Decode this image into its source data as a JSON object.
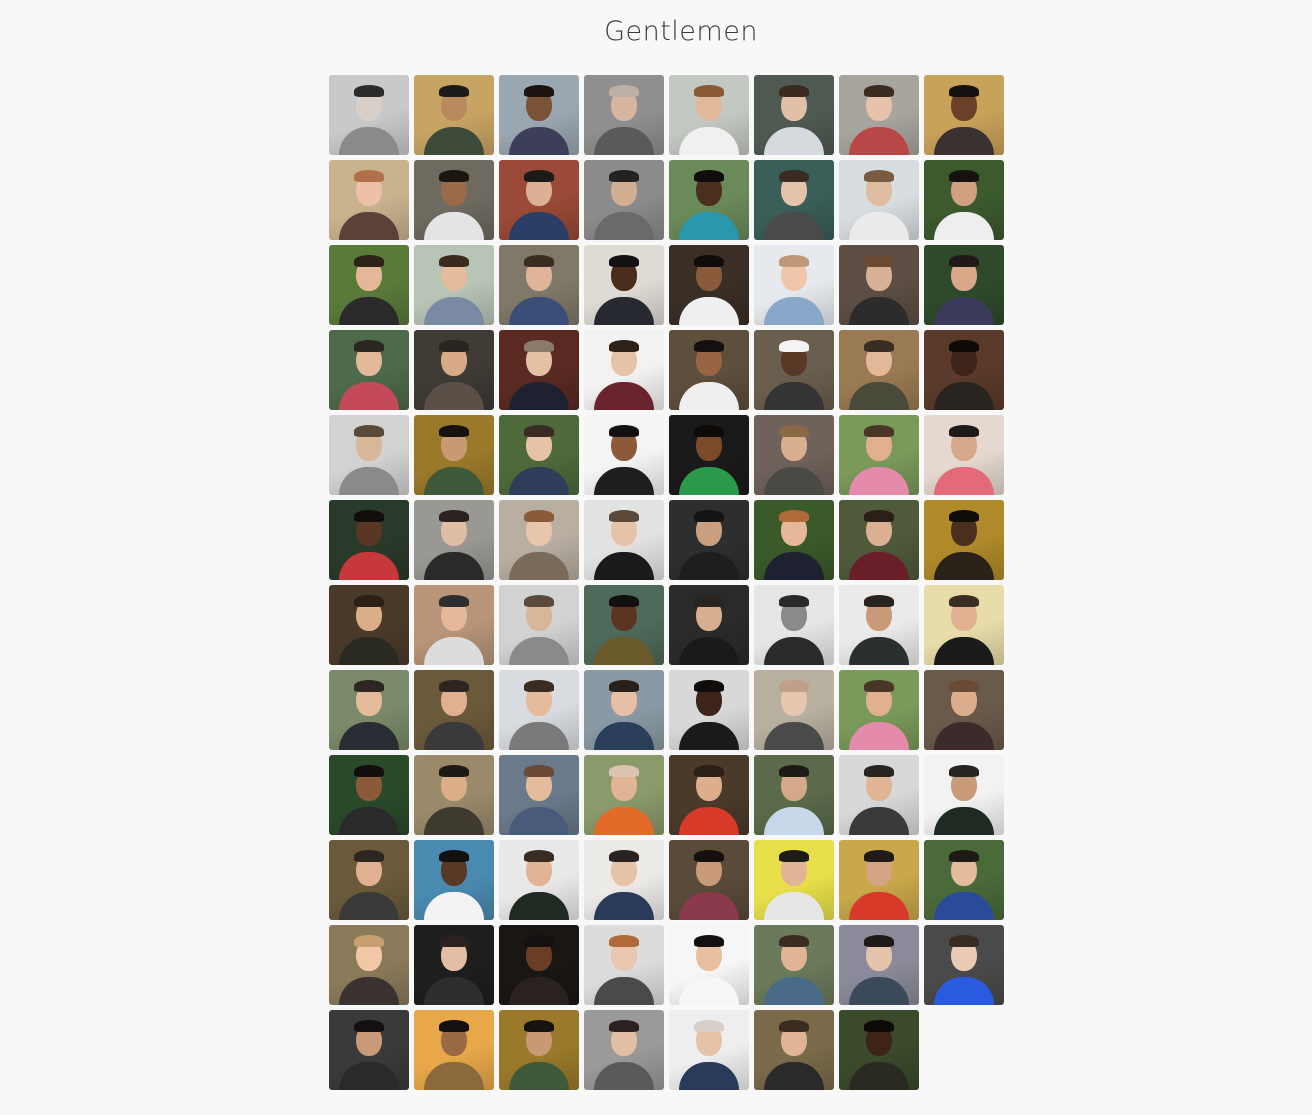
{
  "page": {
    "title": "Gentlemen"
  },
  "avatars": [
    {
      "name": "avatar-01",
      "bg": "#c9c9c9",
      "skin": "#d8d0c8",
      "hair": "#2b2b2b",
      "shirt": "#8a8a8a"
    },
    {
      "name": "avatar-02",
      "bg": "#c8a464",
      "skin": "#b98a5e",
      "hair": "#1d1b19",
      "shirt": "#3e4a3a"
    },
    {
      "name": "avatar-03",
      "bg": "#9aa7b0",
      "skin": "#7a5238",
      "hair": "#1b1410",
      "shirt": "#3d3e58"
    },
    {
      "name": "avatar-04",
      "bg": "#8f8f8f",
      "skin": "#d8b4a0",
      "hair": "#bcb0a4",
      "shirt": "#5a5a5a"
    },
    {
      "name": "avatar-05",
      "bg": "#c4c8c2",
      "skin": "#e0b89a",
      "hair": "#8a5a34",
      "shirt": "#f0f0f0"
    },
    {
      "name": "avatar-06",
      "bg": "#4e5a52",
      "skin": "#e1bea6",
      "hair": "#3a2a20",
      "shirt": "#d6d9de"
    },
    {
      "name": "avatar-07",
      "bg": "#a8a49e",
      "skin": "#e6c2ac",
      "hair": "#3b2c22",
      "shirt": "#b84848"
    },
    {
      "name": "avatar-08",
      "bg": "#c9a25a",
      "skin": "#6a4128",
      "hair": "#141010",
      "shirt": "#3a3230"
    },
    {
      "name": "avatar-09",
      "bg": "#c9b28e",
      "skin": "#efc0a8",
      "hair": "#b0704a",
      "shirt": "#5a4238"
    },
    {
      "name": "avatar-10",
      "bg": "#6f6a60",
      "skin": "#9a6a4a",
      "hair": "#1b1612",
      "shirt": "#e4e4e4"
    },
    {
      "name": "avatar-11",
      "bg": "#9a4a36",
      "skin": "#dcb094",
      "hair": "#1e1a18",
      "shirt": "#2a3e66"
    },
    {
      "name": "avatar-12",
      "bg": "#8b8b8b",
      "skin": "#d4ae92",
      "hair": "#222222",
      "shirt": "#6a6a6a"
    },
    {
      "name": "avatar-13",
      "bg": "#6a8a5a",
      "skin": "#4a2e1e",
      "hair": "#0f0c0a",
      "shirt": "#2a98ac"
    },
    {
      "name": "avatar-14",
      "bg": "#3a5e58",
      "skin": "#e6c4ac",
      "hair": "#3a2c22",
      "shirt": "#4a4a4a"
    },
    {
      "name": "avatar-15",
      "bg": "#d8dde0",
      "skin": "#e0bca0",
      "hair": "#7a5a40",
      "shirt": "#eaeaea"
    },
    {
      "name": "avatar-16",
      "bg": "#3c5a2e",
      "skin": "#d0a080",
      "hair": "#161210",
      "shirt": "#eeeeee"
    },
    {
      "name": "avatar-17",
      "bg": "#5a7a3a",
      "skin": "#e3b898",
      "hair": "#2e2218",
      "shirt": "#2a2a2a"
    },
    {
      "name": "avatar-18",
      "bg": "#b8c4b6",
      "skin": "#e2bc9c",
      "hair": "#3c2a1c",
      "shirt": "#7a8aa4"
    },
    {
      "name": "avatar-19",
      "bg": "#807868",
      "skin": "#e0b498",
      "hair": "#3a2e22",
      "shirt": "#3a4e78"
    },
    {
      "name": "avatar-20",
      "bg": "#dedad4",
      "skin": "#4a2c1c",
      "hair": "#121010",
      "shirt": "#262a30"
    },
    {
      "name": "avatar-21",
      "bg": "#3a2e26",
      "skin": "#8a5a3a",
      "hair": "#100c0a",
      "shirt": "#efefef"
    },
    {
      "name": "avatar-22",
      "bg": "#e6eaee",
      "skin": "#f0c6aa",
      "hair": "#c09878",
      "shirt": "#8aa6c8"
    },
    {
      "name": "avatar-23",
      "bg": "#5c4e44",
      "skin": "#d8b096",
      "hair": "#6a4a32",
      "shirt": "#2c2c2c"
    },
    {
      "name": "avatar-24",
      "bg": "#2e4a2a",
      "skin": "#d8a888",
      "hair": "#22181a",
      "shirt": "#3c3a5a"
    },
    {
      "name": "avatar-25",
      "bg": "#4e6a4a",
      "skin": "#e2b898",
      "hair": "#2a2620",
      "shirt": "#c44a5a"
    },
    {
      "name": "avatar-26",
      "bg": "#3e3a34",
      "skin": "#d8aa88",
      "hair": "#2a2420",
      "shirt": "#5a5048"
    },
    {
      "name": "avatar-27",
      "bg": "#5a2a22",
      "skin": "#e4c0a4",
      "hair": "#8a7a6a",
      "shirt": "#1e2230"
    },
    {
      "name": "avatar-28",
      "bg": "#f2f2f2",
      "skin": "#e6c2a8",
      "hair": "#2e2218",
      "shirt": "#6a2430"
    },
    {
      "name": "avatar-29",
      "bg": "#5e4e3c",
      "skin": "#9a6444",
      "hair": "#141010",
      "shirt": "#efefef"
    },
    {
      "name": "avatar-30",
      "bg": "#6a5e4e",
      "skin": "#5a3826",
      "hair": "#f4f4f4",
      "shirt": "#343434"
    },
    {
      "name": "avatar-31",
      "bg": "#9a7a52",
      "skin": "#e2b898",
      "hair": "#3a2e24",
      "shirt": "#4a4a3a"
    },
    {
      "name": "avatar-32",
      "bg": "#5a3a2a",
      "skin": "#3e2418",
      "hair": "#0e0a08",
      "shirt": "#2a2420"
    },
    {
      "name": "avatar-33",
      "bg": "#d2d2d2",
      "skin": "#d8b69a",
      "hair": "#5a4a3a",
      "shirt": "#8a8a8a"
    },
    {
      "name": "avatar-34",
      "bg": "#9a7a2a",
      "skin": "#c89a74",
      "hair": "#161210",
      "shirt": "#3e5a3a"
    },
    {
      "name": "avatar-35",
      "bg": "#4e6a3a",
      "skin": "#e6c2a6",
      "hair": "#3a2c22",
      "shirt": "#2e3e5a"
    },
    {
      "name": "avatar-36",
      "bg": "#f4f4f4",
      "skin": "#8a5a3a",
      "hair": "#121010",
      "shirt": "#1e1e1e"
    },
    {
      "name": "avatar-37",
      "bg": "#1a1a1a",
      "skin": "#7a4a2a",
      "hair": "#0e0a08",
      "shirt": "#2a9a4a"
    },
    {
      "name": "avatar-38",
      "bg": "#6e625a",
      "skin": "#d8b090",
      "hair": "#8a6a44",
      "shirt": "#4a4a44"
    },
    {
      "name": "avatar-39",
      "bg": "#7a9a5a",
      "skin": "#e0b090",
      "hair": "#4a3626",
      "shirt": "#e48aaa"
    },
    {
      "name": "avatar-40",
      "bg": "#e4d8d0",
      "skin": "#d4a888",
      "hair": "#1e1a18",
      "shirt": "#e46a7a"
    },
    {
      "name": "avatar-41",
      "bg": "#2a3a2a",
      "skin": "#5a3624",
      "hair": "#120e0c",
      "shirt": "#c8383a"
    },
    {
      "name": "avatar-42",
      "bg": "#9a9892",
      "skin": "#e0bea4",
      "hair": "#2a2220",
      "shirt": "#2a2a2a"
    },
    {
      "name": "avatar-43",
      "bg": "#b8aea2",
      "skin": "#e8c6ae",
      "hair": "#8a5a3a",
      "shirt": "#7a6a5a"
    },
    {
      "name": "avatar-44",
      "bg": "#e2e2e2",
      "skin": "#e6c2a8",
      "hair": "#5a4a3a",
      "shirt": "#1a1a1a"
    },
    {
      "name": "avatar-45",
      "bg": "#2e2e2e",
      "skin": "#c8a080",
      "hair": "#141414",
      "shirt": "#1e1e1e"
    },
    {
      "name": "avatar-46",
      "bg": "#3a5a2a",
      "skin": "#e4b898",
      "hair": "#b06a3a",
      "shirt": "#1e2230"
    },
    {
      "name": "avatar-47",
      "bg": "#4e5a3a",
      "skin": "#dcb092",
      "hair": "#2a2018",
      "shirt": "#6a1e2a"
    },
    {
      "name": "avatar-48",
      "bg": "#b08a2a",
      "skin": "#4a2e1e",
      "hair": "#100c0a",
      "shirt": "#2a2218"
    },
    {
      "name": "avatar-49",
      "bg": "#4a3a2a",
      "skin": "#dcae8a",
      "hair": "#2a2018",
      "shirt": "#2a2a22"
    },
    {
      "name": "avatar-50",
      "bg": "#b89478",
      "skin": "#e4b898",
      "hair": "#2e2e2e",
      "shirt": "#dcdcdc"
    },
    {
      "name": "avatar-51",
      "bg": "#d2d2d2",
      "skin": "#d8b69a",
      "hair": "#5a4a3a",
      "shirt": "#8a8a8a"
    },
    {
      "name": "avatar-52",
      "bg": "#4e6a5a",
      "skin": "#5a3622",
      "hair": "#141010",
      "shirt": "#6a5a2a"
    },
    {
      "name": "avatar-53",
      "bg": "#2a2a2a",
      "skin": "#d8ae90",
      "hair": "#2a2420",
      "shirt": "#1a1a1a"
    },
    {
      "name": "avatar-54",
      "bg": "#e6e6e6",
      "skin": "#8a8a8a",
      "hair": "#2a2a2a",
      "shirt": "#2a2a2a"
    },
    {
      "name": "avatar-55",
      "bg": "#eaeaea",
      "skin": "#c89a78",
      "hair": "#2a2420",
      "shirt": "#2a3030"
    },
    {
      "name": "avatar-56",
      "bg": "#e8dcaa",
      "skin": "#e0b090",
      "hair": "#3a2e24",
      "shirt": "#1a1a1a"
    },
    {
      "name": "avatar-57",
      "bg": "#7a8a6a",
      "skin": "#e4bc9c",
      "hair": "#2e2620",
      "shirt": "#2a2e34"
    },
    {
      "name": "avatar-58",
      "bg": "#6a5a3a",
      "skin": "#e0b090",
      "hair": "#2e2420",
      "shirt": "#3a3a3a"
    },
    {
      "name": "avatar-59",
      "bg": "#d8dce0",
      "skin": "#e4bc9c",
      "hair": "#3a2c20",
      "shirt": "#7a7a7a"
    },
    {
      "name": "avatar-60",
      "bg": "#8a9aa4",
      "skin": "#e6c0a4",
      "hair": "#2a2018",
      "shirt": "#2a3e5a"
    },
    {
      "name": "avatar-61",
      "bg": "#d8d8d8",
      "skin": "#3e2418",
      "hair": "#100c0a",
      "shirt": "#1a1a1a"
    },
    {
      "name": "avatar-62",
      "bg": "#b8b0a0",
      "skin": "#e6c6ae",
      "hair": "#c0a088",
      "shirt": "#4a4a4a"
    },
    {
      "name": "avatar-63",
      "bg": "#7a9a5a",
      "skin": "#e0b090",
      "hair": "#4a3626",
      "shirt": "#e48aaa"
    },
    {
      "name": "avatar-64",
      "bg": "#6a5a4a",
      "skin": "#dcae8e",
      "hair": "#6a4a34",
      "shirt": "#3e2a2a"
    },
    {
      "name": "avatar-65",
      "bg": "#2a4a2a",
      "skin": "#8a5a3a",
      "hair": "#120e0c",
      "shirt": "#2a2a2a"
    },
    {
      "name": "avatar-66",
      "bg": "#9a8a6a",
      "skin": "#dcae88",
      "hair": "#1e1a16",
      "shirt": "#3e3a30"
    },
    {
      "name": "avatar-67",
      "bg": "#6a7a8a",
      "skin": "#e4bc9c",
      "hair": "#6a4a34",
      "shirt": "#4a5a7a"
    },
    {
      "name": "avatar-68",
      "bg": "#8a9a6a",
      "skin": "#e0b494",
      "hair": "#d8c4b0",
      "shirt": "#e46a2a"
    },
    {
      "name": "avatar-69",
      "bg": "#4a3a2a",
      "skin": "#dcae8e",
      "hair": "#2a2018",
      "shirt": "#d83a2a"
    },
    {
      "name": "avatar-70",
      "bg": "#5a6a4a",
      "skin": "#d4a888",
      "hair": "#1e1a16",
      "shirt": "#c8d8ea"
    },
    {
      "name": "avatar-71",
      "bg": "#d8d8d8",
      "skin": "#e0b494",
      "hair": "#2a2420",
      "shirt": "#3a3a3a"
    },
    {
      "name": "avatar-72",
      "bg": "#f2f2f2",
      "skin": "#c89a78",
      "hair": "#2a2420",
      "shirt": "#1e2a22"
    },
    {
      "name": "avatar-73",
      "bg": "#6a5a3a",
      "skin": "#e0b090",
      "hair": "#2e2420",
      "shirt": "#3a3a3a"
    },
    {
      "name": "avatar-74",
      "bg": "#4a8ab0",
      "skin": "#5a3826",
      "hair": "#121010",
      "shirt": "#f2f2f2"
    },
    {
      "name": "avatar-75",
      "bg": "#e8e8e8",
      "skin": "#e0b494",
      "hair": "#3a2c20",
      "shirt": "#1e2a22"
    },
    {
      "name": "avatar-76",
      "bg": "#eceae6",
      "skin": "#e6c2a8",
      "hair": "#2a2220",
      "shirt": "#2a3a5a"
    },
    {
      "name": "avatar-77",
      "bg": "#5a4a3a",
      "skin": "#c89a78",
      "hair": "#141010",
      "shirt": "#8a3a4a"
    },
    {
      "name": "avatar-78",
      "bg": "#e8e04a",
      "skin": "#e0b494",
      "hair": "#1e1a16",
      "shirt": "#e6e6e6"
    },
    {
      "name": "avatar-79",
      "bg": "#c8a84a",
      "skin": "#d4a484",
      "hair": "#1e1a16",
      "shirt": "#d83a2a"
    },
    {
      "name": "avatar-80",
      "bg": "#4a6a3a",
      "skin": "#e2bc9c",
      "hair": "#1e1a16",
      "shirt": "#2a4a9a"
    },
    {
      "name": "avatar-81",
      "bg": "#8a7a5a",
      "skin": "#f0c8a8",
      "hair": "#c8a070",
      "shirt": "#3a3230"
    },
    {
      "name": "avatar-82",
      "bg": "#1e1e1e",
      "skin": "#e4bea4",
      "hair": "#2a2220",
      "shirt": "#2e2e2e"
    },
    {
      "name": "avatar-83",
      "bg": "#1a1614",
      "skin": "#6a3e24",
      "hair": "#141010",
      "shirt": "#2a2220"
    },
    {
      "name": "avatar-84",
      "bg": "#dcdcdc",
      "skin": "#eac6ae",
      "hair": "#b06a3a",
      "shirt": "#4a4a4a"
    },
    {
      "name": "avatar-85",
      "bg": "#f6f6f6",
      "skin": "#e8c0a0",
      "hair": "#141010",
      "shirt": "#f6f6f6"
    },
    {
      "name": "avatar-86",
      "bg": "#6a7a5a",
      "skin": "#e0b494",
      "hair": "#3a2c20",
      "shirt": "#4a6a8a"
    },
    {
      "name": "avatar-87",
      "bg": "#8a8a9a",
      "skin": "#e6c4ac",
      "hair": "#1e1a18",
      "shirt": "#3a4a5a"
    },
    {
      "name": "avatar-88",
      "bg": "#4a4a4a",
      "skin": "#eacab4",
      "hair": "#3a2c22",
      "shirt": "#2a5ae0"
    },
    {
      "name": "avatar-89",
      "bg": "#3a3a3a",
      "skin": "#c89a78",
      "hair": "#141010",
      "shirt": "#2a2a2a"
    },
    {
      "name": "avatar-90",
      "bg": "#e8a84a",
      "skin": "#9a6a44",
      "hair": "#141010",
      "shirt": "#8a6a3a"
    },
    {
      "name": "avatar-91",
      "bg": "#9a7a2a",
      "skin": "#c89a74",
      "hair": "#161210",
      "shirt": "#3e5a3a"
    },
    {
      "name": "avatar-92",
      "bg": "#9a9a9a",
      "skin": "#e4bea4",
      "hair": "#2a2220",
      "shirt": "#5a5a5a"
    },
    {
      "name": "avatar-93",
      "bg": "#eeeeee",
      "skin": "#e6c2a6",
      "hair": "#d8d0c8",
      "shirt": "#2a3a5a"
    },
    {
      "name": "avatar-94",
      "bg": "#7a6a4a",
      "skin": "#e0b494",
      "hair": "#3a2c20",
      "shirt": "#2a2a2a"
    },
    {
      "name": "avatar-95",
      "bg": "#3a4a2a",
      "skin": "#3e2418",
      "hair": "#0e0a08",
      "shirt": "#2a2a22"
    }
  ]
}
